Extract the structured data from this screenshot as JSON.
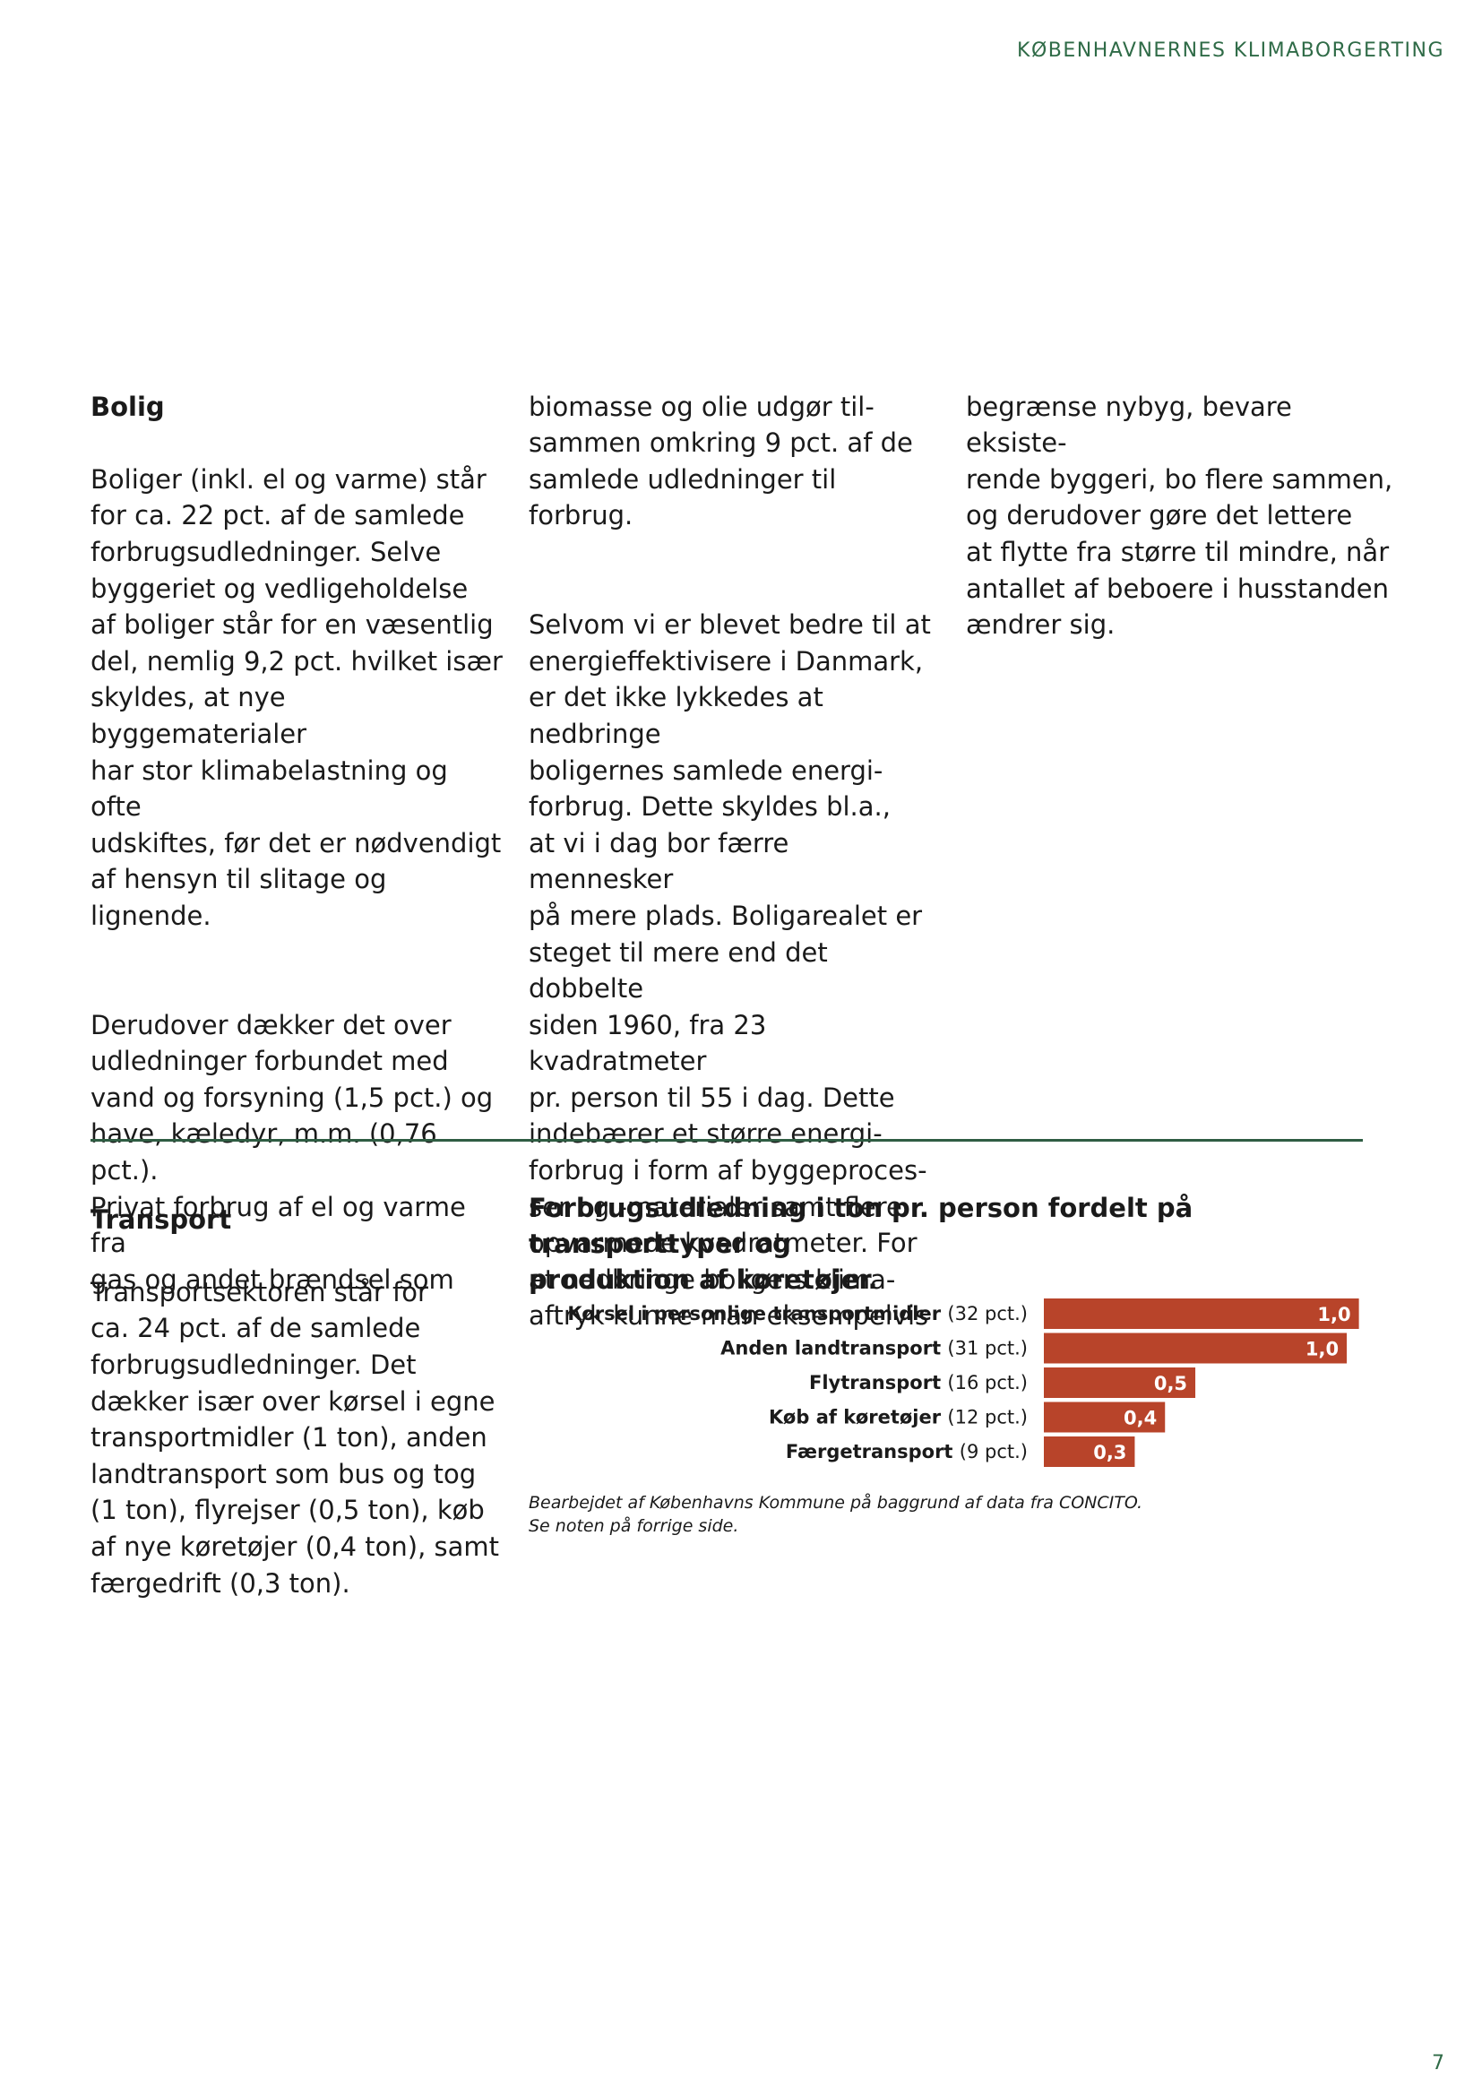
{
  "header": {
    "title": "KØBENHAVNERNES KLIMABORGERTING"
  },
  "bolig": {
    "heading": "Bolig",
    "col1_p1": "Boliger (inkl. el og varme) står\nfor ca. 22 pct. af de samlede\nforbrugsudledninger. Selve\nbyggeriet og vedligeholdelse\naf boliger står for en væsentlig\ndel, nemlig 9,2 pct. hvilket især\nskyldes, at nye byggematerialer\nhar stor klimabelastning og ofte\nudskiftes, før det er nødvendigt\naf hensyn til slitage og lignende.",
    "col1_p2": "Derudover dækker det over\nudledninger forbundet med\nvand og forsyning (1,5 pct.) og\nhave, kæledyr, m.m. (0,76 pct.).\nPrivat forbrug af el og varme fra\ngas og andet brændsel som",
    "col2_p1": "biomasse og olie udgør til-\nsammen omkring 9 pct. af de\nsamlede udledninger til forbrug.",
    "col2_p2": "Selvom vi er blevet bedre til at\nenergieffektivisere i Danmark,\ner det ikke lykkedes at nedbringe\nboligernes samlede energi-\nforbrug. Dette skyldes bl.a.,\nat vi i dag bor færre mennesker\npå mere plads. Boligarealet er\nsteget til mere end det dobbelte\nsiden 1960, fra 23 kvadratmeter\npr. person til 55 i dag. Dette\nindebærer et større energi-\nforbrug i form af byggeproces-\nser og -materialer samt flere\nopvarmede kvadratmeter. For\nat nedbringe boligers klima-\naftryk kunne man eksempelvis",
    "col3_p1": "begrænse nybyg, bevare eksiste-\nrende byggeri, bo flere sammen,\nog derudover gøre det lettere\nat flytte fra større til mindre, når\nantallet af beboere i husstanden\nændrer sig."
  },
  "transport": {
    "heading": "Transport",
    "body": "Transportsektoren står for\nca. 24 pct. af de samlede\nforbrugsudledninger. Det\ndækker især over kørsel i egne\ntransportmidler (1 ton), anden\nlandtransport som bus og tog\n(1 ton), flyrejser (0,5 ton), køb\naf nye køretøjer (0,4 ton), samt\nfærgedrift (0,3 ton)."
  },
  "chart_data": {
    "type": "bar",
    "orientation": "horizontal",
    "title": "Forbrugsudledning i ton pr. person fordelt på transporttyper og\nproduktion af køretøjer.",
    "categories": [
      {
        "name": "Kørsel i personlige transportmidler",
        "share": "(32 pct.)"
      },
      {
        "name": "Anden landtransport",
        "share": "(31 pct.)"
      },
      {
        "name": "Flytransport",
        "share": "(16 pct.)"
      },
      {
        "name": "Køb af køretøjer",
        "share": "(12 pct.)"
      },
      {
        "name": "Færgetransport",
        "share": "(9 pct.)"
      }
    ],
    "values": [
      1.04,
      1.0,
      0.5,
      0.4,
      0.3
    ],
    "value_labels": [
      "1,0",
      "1,0",
      "0,5",
      "0,4",
      "0,3"
    ],
    "bar_color": "#b8442a",
    "label_color": "#ffffff",
    "xlim": [
      0,
      1.05
    ],
    "grid": false,
    "note": "Bearbejdet af Københavns Kommune på baggrund af data fra CONCITO.\nSe noten på forrige side."
  },
  "page": {
    "number": "7"
  }
}
